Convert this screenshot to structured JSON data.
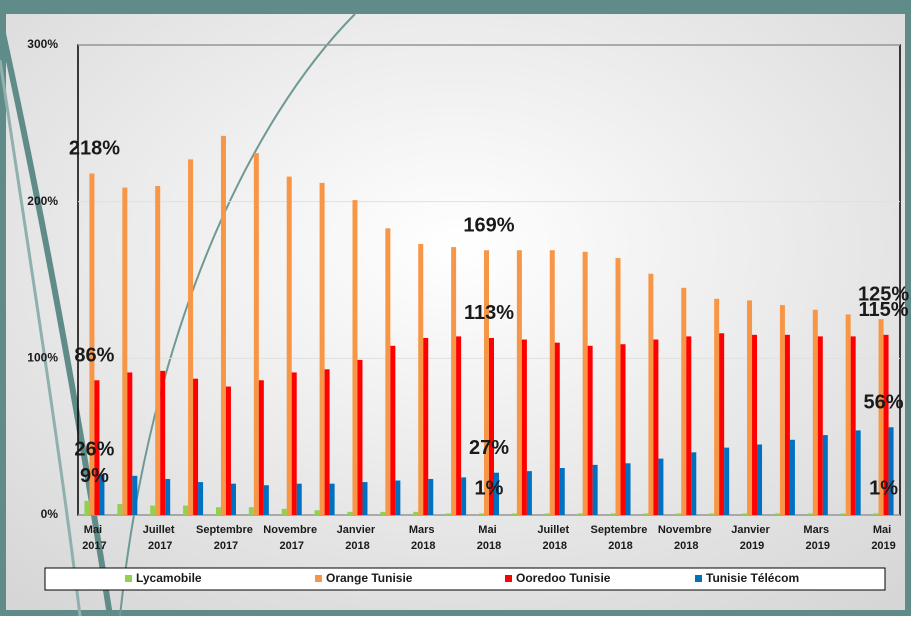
{
  "chart_data": {
    "type": "bar",
    "categories": [
      "Mai 2017",
      null,
      "Juillet 2017",
      null,
      "Septembre 2017",
      null,
      "Novembre 2017",
      null,
      "Janvier 2018",
      null,
      "Mars 2018",
      null,
      "Mai 2018",
      null,
      "Juillet 2018",
      null,
      "Septembre 2018",
      null,
      "Novembre 2018",
      null,
      "Janvier 2019",
      null,
      "Mars 2019",
      null,
      "Mai 2019"
    ],
    "series": [
      {
        "name": "Lycamobile",
        "color": "#92d050",
        "values": [
          9,
          7,
          6,
          6,
          5,
          5,
          4,
          3,
          2,
          2,
          2,
          1,
          1,
          1,
          1,
          1,
          1,
          1,
          1,
          1,
          1,
          1,
          1,
          1,
          1
        ],
        "value_labels": [
          "9%",
          null,
          null,
          null,
          null,
          null,
          null,
          null,
          null,
          null,
          null,
          null,
          "1%",
          null,
          null,
          null,
          null,
          null,
          null,
          null,
          null,
          null,
          null,
          null,
          "1%"
        ]
      },
      {
        "name": "Orange Tunisie",
        "color": "#f79646",
        "values": [
          218,
          209,
          210,
          227,
          242,
          231,
          216,
          212,
          201,
          183,
          173,
          171,
          169,
          169,
          169,
          168,
          164,
          154,
          145,
          138,
          137,
          134,
          131,
          128,
          125
        ],
        "value_labels": [
          "218%",
          null,
          null,
          null,
          null,
          null,
          null,
          null,
          null,
          null,
          null,
          null,
          "169%",
          null,
          null,
          null,
          null,
          null,
          null,
          null,
          null,
          null,
          null,
          null,
          "125%"
        ]
      },
      {
        "name": "Ooredoo Tunisie",
        "color": "#ff0000",
        "values": [
          86,
          91,
          92,
          87,
          82,
          86,
          91,
          93,
          99,
          108,
          113,
          114,
          113,
          112,
          110,
          108,
          109,
          112,
          114,
          116,
          115,
          115,
          114,
          114,
          115
        ],
        "value_labels": [
          "86%",
          null,
          null,
          null,
          null,
          null,
          null,
          null,
          null,
          null,
          null,
          null,
          "113%",
          null,
          null,
          null,
          null,
          null,
          null,
          null,
          null,
          null,
          null,
          null,
          "115%"
        ]
      },
      {
        "name": "Tunisie Télécom",
        "color": "#0070c0",
        "values": [
          26,
          25,
          23,
          21,
          20,
          19,
          20,
          20,
          21,
          22,
          23,
          24,
          27,
          28,
          30,
          32,
          33,
          36,
          40,
          43,
          45,
          48,
          51,
          54,
          56
        ],
        "value_labels": [
          "26%",
          null,
          null,
          null,
          null,
          null,
          null,
          null,
          null,
          null,
          null,
          null,
          "27%",
          null,
          null,
          null,
          null,
          null,
          null,
          null,
          null,
          null,
          null,
          null,
          "56%"
        ]
      }
    ],
    "ylim": [
      0,
      300
    ],
    "yticks": [
      {
        "value": 0,
        "label": "0%"
      },
      {
        "value": 100,
        "label": "100%"
      },
      {
        "value": 200,
        "label": "200%"
      },
      {
        "value": 300,
        "label": "300%"
      }
    ],
    "grid": true,
    "legend": "bottom"
  }
}
